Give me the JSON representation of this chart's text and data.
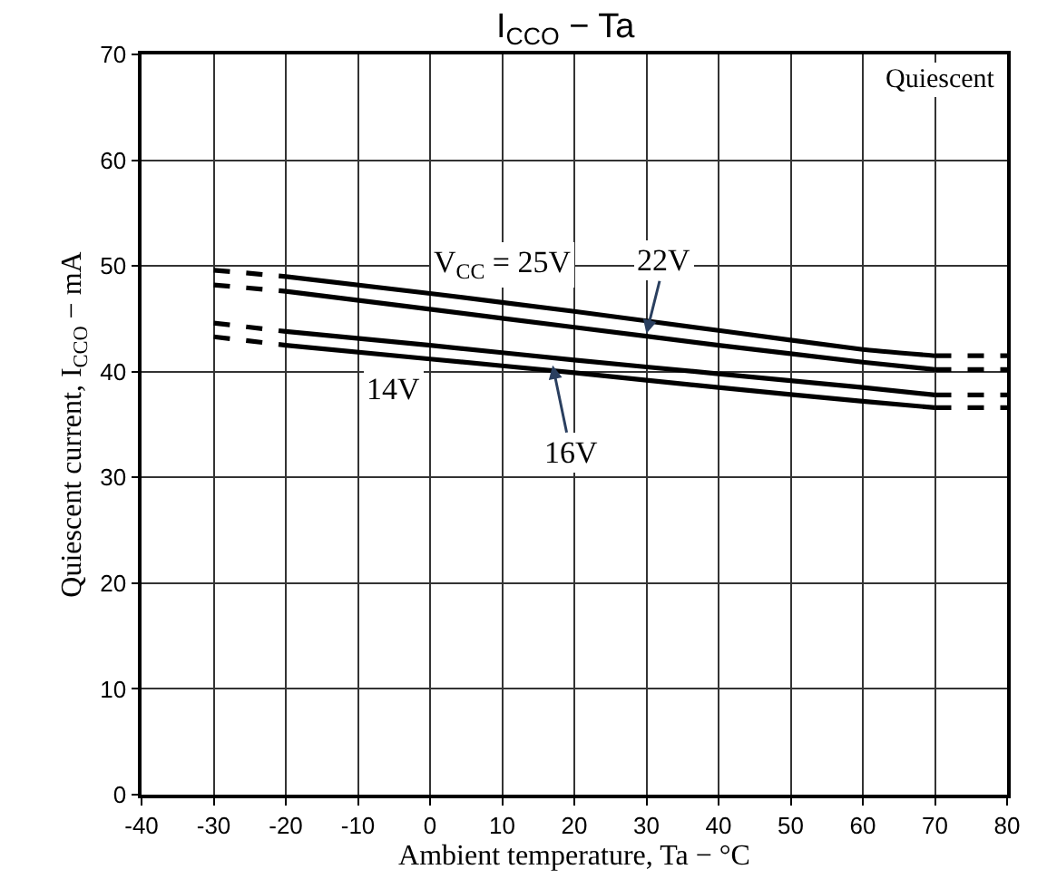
{
  "chart_data": {
    "type": "line",
    "title": "I$_{CCO}$ − Ta",
    "xlabel": "Ambient temperature, Ta − °C",
    "ylabel": "Quiescent current, I$_{CCO}$ − mA",
    "series": [
      {
        "color": "#000000",
        "line_style": "solid",
        "x": [
          -20,
          0,
          20,
          40,
          60,
          70
        ],
        "values": [
          49.0,
          47.4,
          45.7,
          43.9,
          42.1,
          41.5
        ]
      },
      {
        "color": "#000000",
        "line_style": "solid",
        "x": [
          -20,
          0,
          20,
          40,
          60,
          70
        ],
        "values": [
          47.6,
          45.9,
          44.2,
          42.5,
          40.9,
          40.2
        ]
      },
      {
        "color": "#000000",
        "line_style": "solid",
        "x": [
          -20,
          0,
          20,
          40,
          60,
          70
        ],
        "values": [
          43.8,
          42.5,
          41.1,
          39.8,
          38.5,
          37.8
        ]
      },
      {
        "color": "#000000",
        "line_style": "solid",
        "x": [
          -20,
          0,
          20,
          40,
          60,
          70
        ],
        "values": [
          42.5,
          41.2,
          39.9,
          38.5,
          37.2,
          36.6
        ]
      },
      {
        "color": "#000000",
        "line_style": "dashed",
        "x": [
          -30,
          -20
        ],
        "values": [
          49.6,
          49.0
        ]
      },
      {
        "color": "#000000",
        "line_style": "dashed",
        "x": [
          -30,
          -20
        ],
        "values": [
          48.2,
          47.6
        ]
      },
      {
        "color": "#000000",
        "line_style": "dashed",
        "x": [
          -30,
          -20
        ],
        "values": [
          44.6,
          43.8
        ]
      },
      {
        "color": "#000000",
        "line_style": "dashed",
        "x": [
          -30,
          -20
        ],
        "values": [
          43.3,
          42.5
        ]
      },
      {
        "color": "#000000",
        "line_style": "dashed",
        "x": [
          70,
          80
        ],
        "values": [
          41.5,
          41.5
        ]
      },
      {
        "color": "#000000",
        "line_style": "dashed",
        "x": [
          70,
          80
        ],
        "values": [
          40.2,
          40.2
        ]
      },
      {
        "color": "#000000",
        "line_style": "dashed",
        "x": [
          70,
          80
        ],
        "values": [
          37.8,
          37.8
        ]
      },
      {
        "color": "#000000",
        "line_style": "dashed",
        "x": [
          70,
          80
        ],
        "values": [
          36.6,
          36.6
        ]
      }
    ],
    "annotations": [
      {
        "text": "V$_{CC}$ = 25V",
        "x": 10,
        "y": 46.6
      },
      {
        "text": "22V",
        "x": 30,
        "y": 43.6
      },
      {
        "text": "14V",
        "x": -5,
        "y": 41.5
      },
      {
        "text": "16V",
        "x": 17,
        "y": 40.6
      },
      "Quiescent"
    ],
    "xlim": [
      -40,
      80
    ],
    "xticks": [
      -40,
      -30,
      -20,
      -10,
      0,
      10,
      20,
      30,
      40,
      50,
      60,
      70,
      80
    ],
    "ylim": [
      0,
      70
    ],
    "yticks": [
      0,
      10,
      20,
      30,
      40,
      50,
      60,
      70
    ],
    "grid": true
  }
}
